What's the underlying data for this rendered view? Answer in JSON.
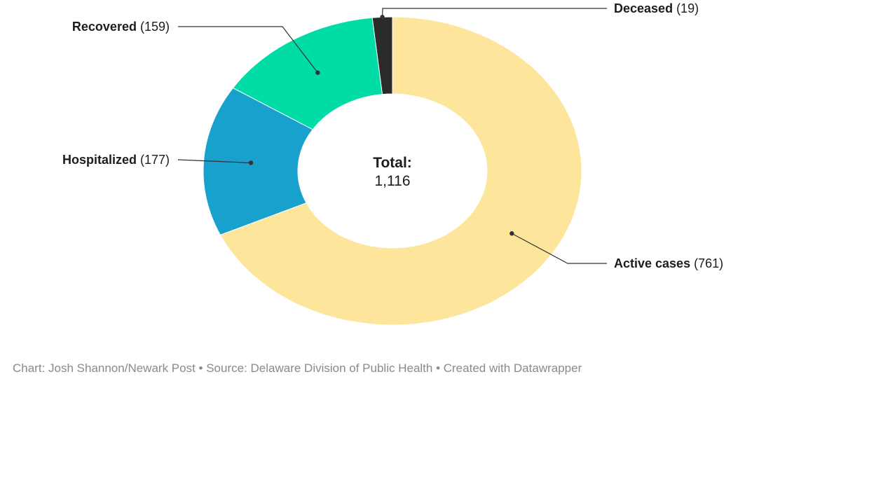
{
  "chart_data": {
    "type": "pie",
    "variant": "donut",
    "categories": [
      "Active cases",
      "Hospitalized",
      "Recovered",
      "Deceased"
    ],
    "values": [
      761,
      177,
      159,
      19
    ],
    "value_labels": [
      "(761)",
      "(177)",
      "(159)",
      "(19)"
    ],
    "colors": [
      "#fee59c",
      "#18a1cd",
      "#00dca6",
      "#2b2b2b"
    ],
    "center_label": "Total:",
    "center_value": "1,116",
    "legend": "none"
  },
  "footer": {
    "text": "Chart: Josh Shannon/Newark Post • Source: Delaware Division of Public Health • Created with Datawrapper"
  }
}
